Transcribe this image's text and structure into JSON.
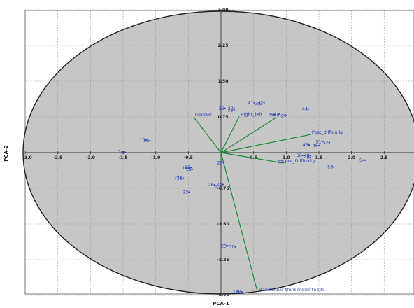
{
  "chart_data": {
    "type": "scatter",
    "xlabel": "PCA-1",
    "ylabel": "PCA-2",
    "xlim": [
      -3.0,
      3.0
    ],
    "ylim": [
      -3.0,
      3.0
    ],
    "x_ticks": [
      -3.0,
      -2.5,
      -2.0,
      -1.5,
      -1.0,
      -0.5,
      0.5,
      1.0,
      1.5,
      2.0,
      2.5
    ],
    "x_tick_labels": [
      "-3.0",
      "-2.5",
      "-2.0",
      "-1.5",
      "-1.0",
      "-0.5",
      "0.5",
      "1.0",
      "1.5",
      "2.0",
      "2.5"
    ],
    "y_ticks": [
      3.0,
      2.25,
      1.5,
      0.75,
      -0.75,
      -1.5,
      -2.25,
      -3.0
    ],
    "y_tick_labels": [
      "3.00",
      "2.25",
      "1.50",
      "0.75",
      "-0.75",
      "-1.50",
      "-2.25",
      "-3.00"
    ],
    "grid": true,
    "confidence_ellipse": true,
    "colors": {
      "ellipse_fill": "#c6c6c6",
      "points": "#2a3fb0",
      "vectors": "#1f8a3c",
      "grid": "#9a9a9a",
      "axes": "#333333"
    },
    "loading_vectors": [
      {
        "label": "Gender",
        "x": -0.42,
        "y": 0.75
      },
      {
        "label": "Right_left",
        "x": 0.28,
        "y": 0.76
      },
      {
        "label": "Age",
        "x": 0.85,
        "y": 0.74
      },
      {
        "label": "Post_difficulty",
        "x": 1.37,
        "y": 0.38
      },
      {
        "label": "pre_Difficulty",
        "x": 0.96,
        "y": -0.22
      },
      {
        "label": "Mandibular third molar teeth",
        "x": 0.55,
        "y": -2.88
      }
    ],
    "points": [
      {
        "label": "1",
        "x": -1.52,
        "y": 0.02
      },
      {
        "label": "2",
        "x": -1.47,
        "y": 0.01
      },
      {
        "label": "15",
        "x": -1.15,
        "y": 0.27
      },
      {
        "label": "16",
        "x": -1.09,
        "y": 0.25
      },
      {
        "label": "19",
        "x": -0.5,
        "y": -0.32
      },
      {
        "label": "17",
        "x": -0.46,
        "y": -0.31
      },
      {
        "label": "18",
        "x": -0.44,
        "y": -0.35
      },
      {
        "label": "21",
        "x": -0.62,
        "y": -0.53
      },
      {
        "label": "22",
        "x": -0.58,
        "y": -0.54
      },
      {
        "label": "23",
        "x": -0.49,
        "y": -0.83
      },
      {
        "label": "20",
        "x": 0.04,
        "y": -0.21
      },
      {
        "label": "26",
        "x": -0.1,
        "y": -0.68
      },
      {
        "label": "24",
        "x": 0.03,
        "y": -0.67
      },
      {
        "label": "25",
        "x": 0.01,
        "y": -0.71
      },
      {
        "label": "29",
        "x": 0.1,
        "y": -1.96
      },
      {
        "label": "30",
        "x": 0.22,
        "y": -1.98
      },
      {
        "label": "31",
        "x": 0.27,
        "y": -2.92
      },
      {
        "label": "32",
        "x": 0.32,
        "y": -2.93
      },
      {
        "label": "36",
        "x": 0.06,
        "y": 0.93
      },
      {
        "label": "37",
        "x": 0.2,
        "y": 0.93
      },
      {
        "label": "38",
        "x": 0.2,
        "y": 0.89
      },
      {
        "label": "41",
        "x": 0.51,
        "y": 1.05
      },
      {
        "label": "42",
        "x": 0.66,
        "y": 1.05
      },
      {
        "label": "43",
        "x": 0.62,
        "y": 1.02
      },
      {
        "label": "39",
        "x": 0.82,
        "y": 0.8
      },
      {
        "label": "40",
        "x": 0.88,
        "y": 0.8
      },
      {
        "label": "44",
        "x": 1.34,
        "y": 0.92
      },
      {
        "label": "47",
        "x": 0.96,
        "y": -0.2
      },
      {
        "label": "45",
        "x": 1.35,
        "y": 0.16
      },
      {
        "label": "46",
        "x": 1.5,
        "y": 0.15
      },
      {
        "label": "51",
        "x": 1.55,
        "y": 0.23
      },
      {
        "label": "52",
        "x": 1.66,
        "y": 0.21
      },
      {
        "label": "50",
        "x": 1.25,
        "y": -0.06
      },
      {
        "label": "48",
        "x": 1.37,
        "y": -0.06
      },
      {
        "label": "49",
        "x": 1.37,
        "y": -0.1
      },
      {
        "label": "53",
        "x": 1.73,
        "y": -0.3
      },
      {
        "label": "54",
        "x": 2.22,
        "y": -0.16
      }
    ]
  }
}
